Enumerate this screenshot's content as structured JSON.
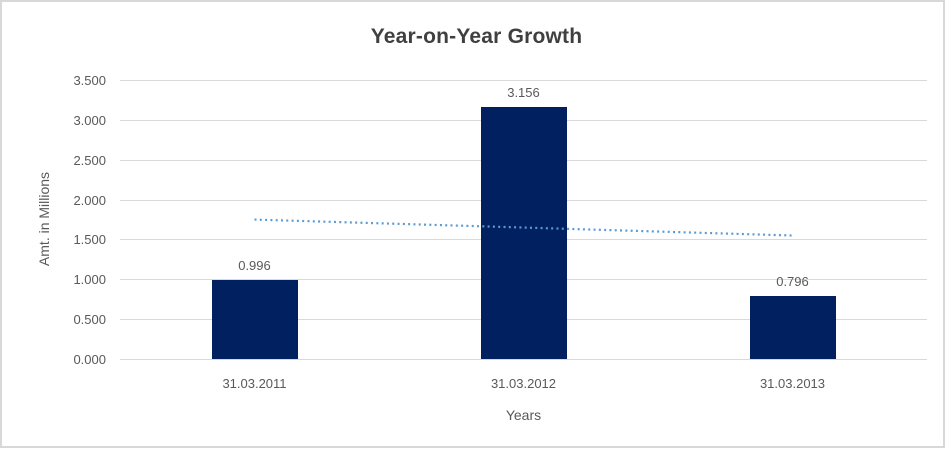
{
  "chart_data": {
    "type": "bar",
    "title": "Year-on-Year Growth",
    "xlabel": "Years",
    "ylabel": "Amt. in Millions",
    "categories": [
      "31.03.2011",
      "31.03.2012",
      "31.03.2013"
    ],
    "series": [
      {
        "name": "Amt. in Millions",
        "values": [
          0.996,
          3.156,
          0.796
        ]
      }
    ],
    "data_labels": [
      "0.996",
      "3.156",
      "0.796"
    ],
    "ylim": [
      0,
      3.5
    ],
    "ytick_step": 0.5,
    "ytick_labels": [
      "0.000",
      "0.500",
      "1.000",
      "1.500",
      "2.000",
      "2.500",
      "3.000",
      "3.500"
    ],
    "grid": true,
    "legend": "none",
    "trendline": {
      "type": "linear",
      "start_value": 1.749,
      "end_value": 1.549,
      "style": "dotted"
    },
    "colors": {
      "bar": "#002060",
      "trendline": "#5b9bd5",
      "gridline": "#d9d9d9",
      "title": "#404040",
      "labels": "#595959",
      "border": "#d8d8d8"
    }
  }
}
